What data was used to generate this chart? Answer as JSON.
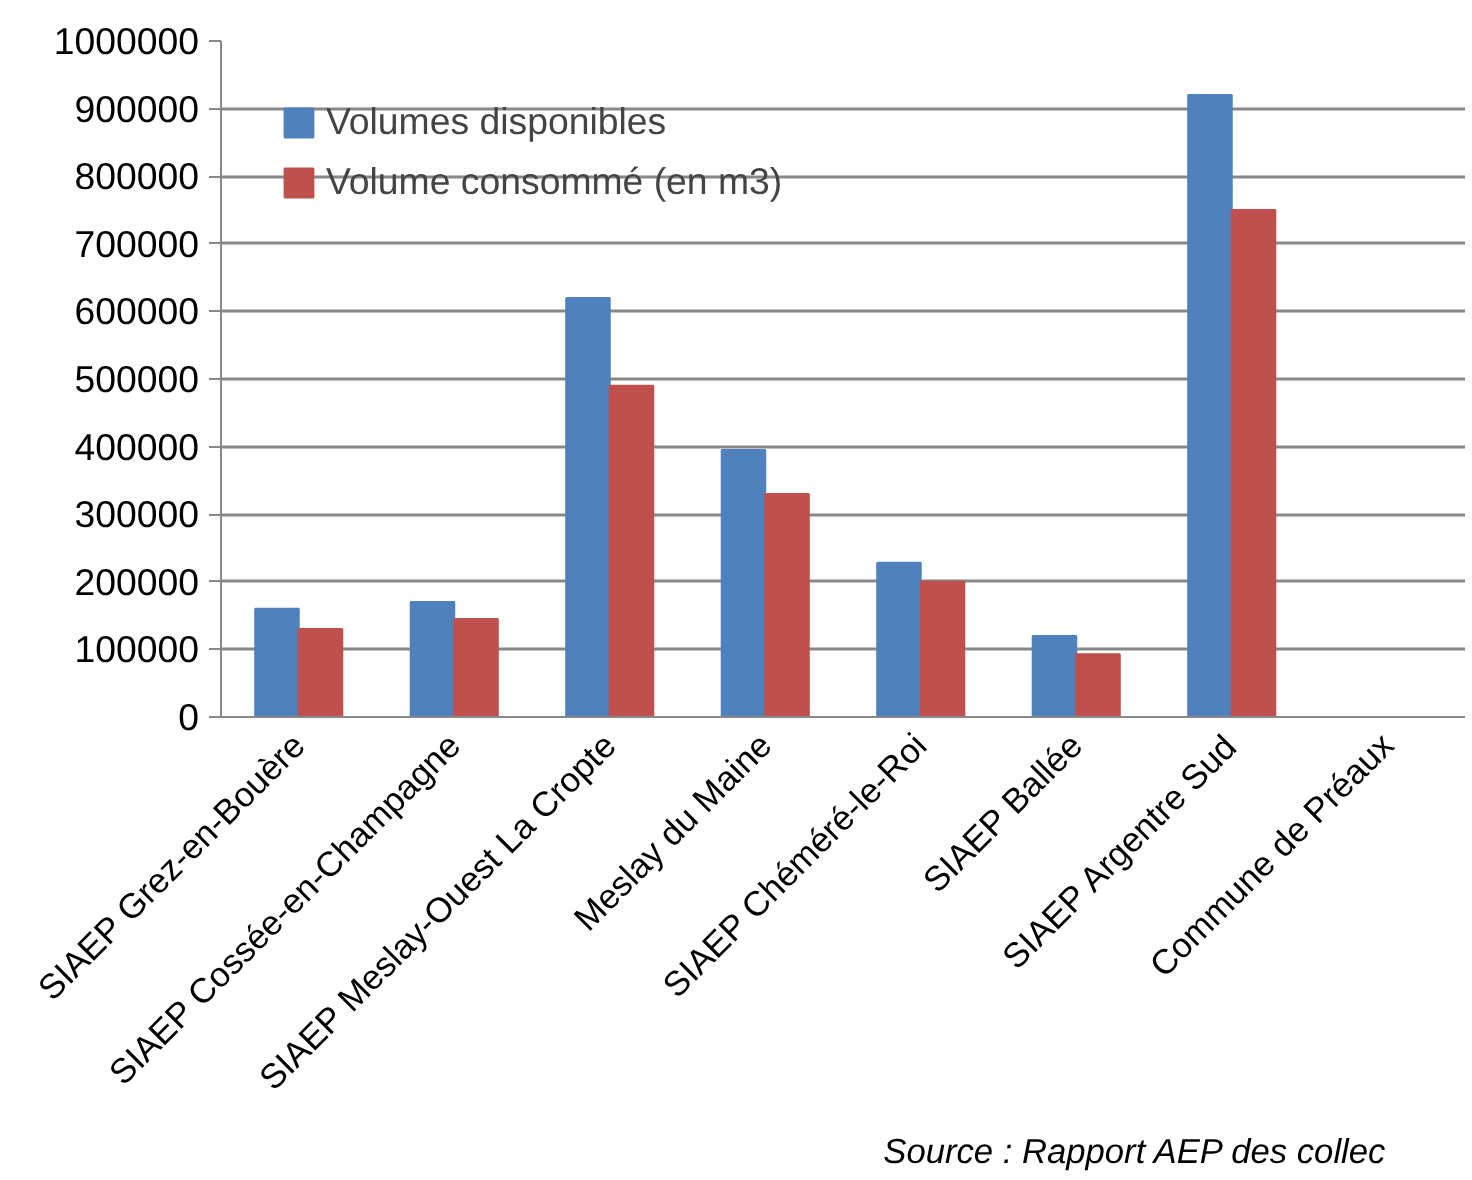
{
  "chart_data": {
    "type": "bar",
    "categories": [
      "SIAEP Grez-en-Bouère",
      "SIAEP Cossée-en-Champagne",
      "SIAEP Meslay-Ouest La Cropte",
      "Meslay du Maine",
      "SIAEP Chéméré-le-Roi",
      "SIAEP Ballée",
      "SIAEP Argentre Sud",
      "Commune de Préaux"
    ],
    "series": [
      {
        "name": "Volumes disponibles",
        "color": "#4f81bd",
        "values": [
          160000,
          170000,
          620000,
          395000,
          228000,
          120000,
          920000,
          null
        ]
      },
      {
        "name": "Volume consommé (en m3)",
        "color": "#c0504d",
        "values": [
          130000,
          145000,
          490000,
          330000,
          200000,
          93000,
          750000,
          null
        ]
      }
    ],
    "ylim": [
      0,
      1000000
    ],
    "yticks": [
      0,
      100000,
      200000,
      300000,
      400000,
      500000,
      600000,
      700000,
      800000,
      900000,
      1000000
    ],
    "grid": "y",
    "legend": "top left",
    "annotations": [
      "Source :   Rapport   AEP   des   collec"
    ]
  }
}
